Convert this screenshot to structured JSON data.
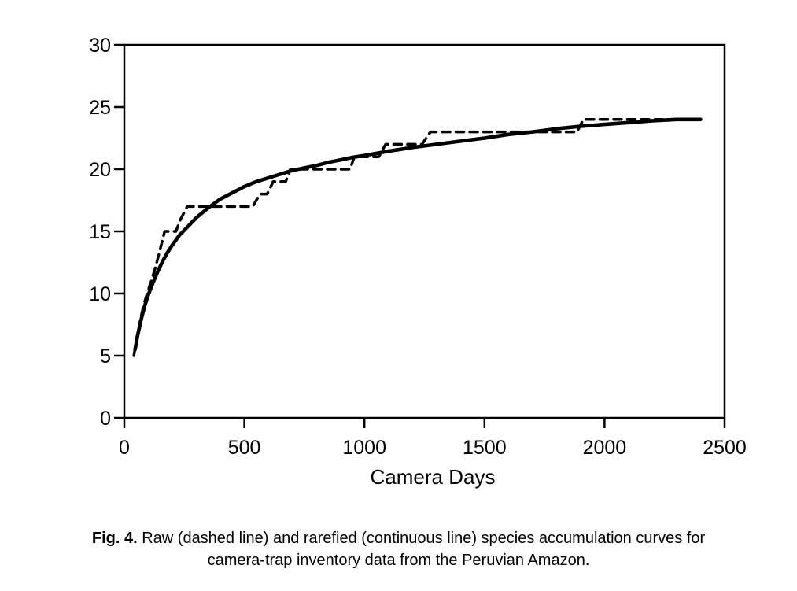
{
  "figure": {
    "caption_prefix": "Fig. 4.",
    "caption_line1_rest": " Raw (dashed line) and rarefied (continuous line) species accumulation curves for",
    "caption_line2": "camera-trap inventory data from the Peruvian Amazon."
  },
  "colors": {
    "ink": "#000000",
    "background": "#ffffff"
  },
  "chart_data": {
    "type": "line",
    "title": "",
    "xlabel": "Camera Days",
    "ylabel": "",
    "xlim": [
      0,
      2500
    ],
    "ylim": [
      0,
      30
    ],
    "xticks": [
      0,
      500,
      1000,
      1500,
      2000,
      2500
    ],
    "yticks": [
      0,
      5,
      10,
      15,
      20,
      25,
      30
    ],
    "grid": false,
    "legend_position": "none",
    "series": [
      {
        "name": "Raw species accumulation (dashed line)",
        "style": "dashed",
        "points": [
          [
            40,
            5
          ],
          [
            48,
            6
          ],
          [
            58,
            7
          ],
          [
            68,
            8
          ],
          [
            80,
            9
          ],
          [
            95,
            10
          ],
          [
            112,
            11
          ],
          [
            128,
            12
          ],
          [
            142,
            13
          ],
          [
            155,
            14
          ],
          [
            168,
            15
          ],
          [
            215,
            15
          ],
          [
            235,
            16
          ],
          [
            262,
            17
          ],
          [
            535,
            17
          ],
          [
            565,
            18
          ],
          [
            595,
            18
          ],
          [
            620,
            19
          ],
          [
            672,
            19
          ],
          [
            692,
            20
          ],
          [
            940,
            20
          ],
          [
            958,
            21
          ],
          [
            1060,
            21
          ],
          [
            1088,
            22
          ],
          [
            1240,
            22
          ],
          [
            1275,
            23
          ],
          [
            1885,
            23
          ],
          [
            1912,
            24
          ],
          [
            2290,
            24
          ]
        ]
      },
      {
        "name": "Rarefied species accumulation (continuous line)",
        "style": "solid",
        "points": [
          [
            45,
            5.5
          ],
          [
            55,
            6.6
          ],
          [
            70,
            7.9
          ],
          [
            85,
            9.0
          ],
          [
            100,
            9.9
          ],
          [
            120,
            10.9
          ],
          [
            140,
            11.8
          ],
          [
            160,
            12.6
          ],
          [
            180,
            13.3
          ],
          [
            200,
            13.9
          ],
          [
            230,
            14.7
          ],
          [
            260,
            15.3
          ],
          [
            300,
            16.1
          ],
          [
            350,
            16.9
          ],
          [
            400,
            17.6
          ],
          [
            450,
            18.1
          ],
          [
            500,
            18.6
          ],
          [
            550,
            19.0
          ],
          [
            600,
            19.3
          ],
          [
            650,
            19.6
          ],
          [
            700,
            19.9
          ],
          [
            750,
            20.1
          ],
          [
            800,
            20.3
          ],
          [
            850,
            20.55
          ],
          [
            900,
            20.75
          ],
          [
            950,
            20.95
          ],
          [
            1000,
            21.1
          ],
          [
            1100,
            21.45
          ],
          [
            1200,
            21.75
          ],
          [
            1300,
            22.0
          ],
          [
            1400,
            22.25
          ],
          [
            1500,
            22.5
          ],
          [
            1600,
            22.8
          ],
          [
            1700,
            23.0
          ],
          [
            1800,
            23.25
          ],
          [
            1900,
            23.45
          ],
          [
            2000,
            23.6
          ],
          [
            2100,
            23.75
          ],
          [
            2200,
            23.9
          ],
          [
            2300,
            24.0
          ],
          [
            2400,
            24.0
          ]
        ]
      }
    ]
  }
}
